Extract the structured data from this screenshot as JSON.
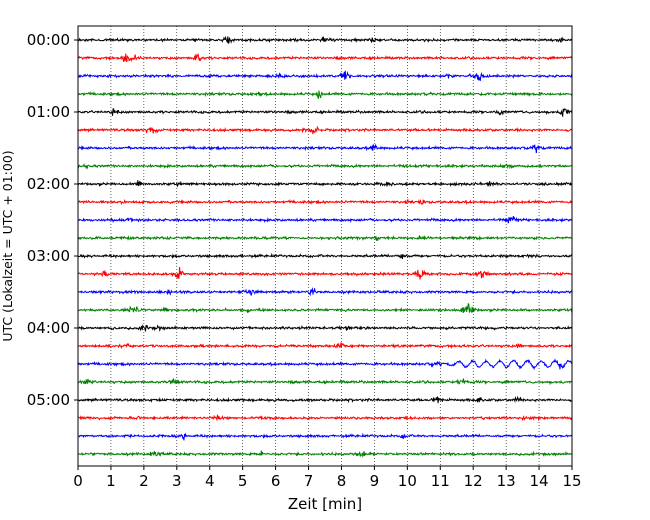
{
  "chart_data": {
    "type": "line",
    "title": "",
    "xlabel": "Zeit  [min]",
    "ylabel": "UTC (Lokalzeit = UTC + 01:00)",
    "xlim": [
      0,
      15
    ],
    "x_ticks": [
      "0",
      "1",
      "2",
      "3",
      "4",
      "5",
      "6",
      "7",
      "8",
      "9",
      "10",
      "11",
      "12",
      "13",
      "14",
      "15"
    ],
    "y_ticks": [
      "00:00",
      "01:00",
      "02:00",
      "03:00",
      "04:00",
      "05:00"
    ],
    "grid": "vertical dotted lines at each minute",
    "trace_interval_min": 15,
    "trace_count": 24,
    "trace_colors": [
      "#000000",
      "#ff0000",
      "#0000ff",
      "#008000"
    ],
    "notable_event": {
      "trace_start": "04:30",
      "x_min_range": [
        11,
        15
      ],
      "description": "larger oscillation"
    },
    "traces": [
      {
        "start": "00:00",
        "color": "#000000"
      },
      {
        "start": "00:15",
        "color": "#ff0000"
      },
      {
        "start": "00:30",
        "color": "#0000ff"
      },
      {
        "start": "00:45",
        "color": "#008000"
      },
      {
        "start": "01:00",
        "color": "#000000"
      },
      {
        "start": "01:15",
        "color": "#ff0000"
      },
      {
        "start": "01:30",
        "color": "#0000ff"
      },
      {
        "start": "01:45",
        "color": "#008000"
      },
      {
        "start": "02:00",
        "color": "#000000"
      },
      {
        "start": "02:15",
        "color": "#ff0000"
      },
      {
        "start": "02:30",
        "color": "#0000ff"
      },
      {
        "start": "02:45",
        "color": "#008000"
      },
      {
        "start": "03:00",
        "color": "#000000"
      },
      {
        "start": "03:15",
        "color": "#ff0000"
      },
      {
        "start": "03:30",
        "color": "#0000ff"
      },
      {
        "start": "03:45",
        "color": "#008000"
      },
      {
        "start": "04:00",
        "color": "#000000"
      },
      {
        "start": "04:15",
        "color": "#ff0000"
      },
      {
        "start": "04:30",
        "color": "#0000ff"
      },
      {
        "start": "04:45",
        "color": "#008000"
      },
      {
        "start": "05:00",
        "color": "#000000"
      },
      {
        "start": "05:15",
        "color": "#ff0000"
      },
      {
        "start": "05:30",
        "color": "#0000ff"
      },
      {
        "start": "05:45",
        "color": "#008000"
      }
    ]
  }
}
